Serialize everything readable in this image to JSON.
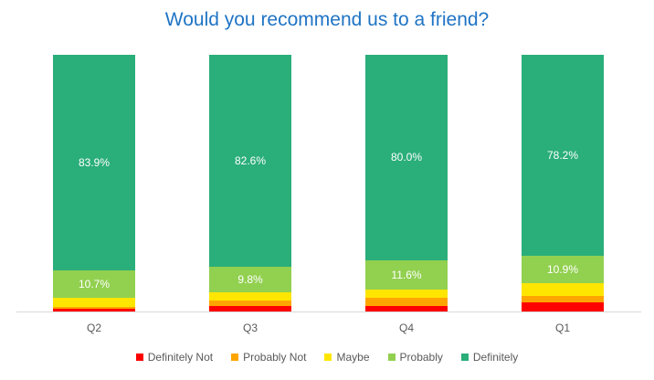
{
  "chart_data": {
    "type": "bar",
    "stacked": true,
    "percent_stacked": true,
    "title": "Would you recommend us to a friend?",
    "xlabel": "",
    "ylabel": "",
    "ylim": [
      0,
      100
    ],
    "grid": false,
    "legend_position": "bottom",
    "categories": [
      "Q2",
      "Q3",
      "Q4",
      "Q1"
    ],
    "series": [
      {
        "name": "Definitely Not",
        "color": "#ff0000",
        "values": [
          1.1,
          2.2,
          2.0,
          3.6
        ],
        "labeled": false
      },
      {
        "name": "Probably Not",
        "color": "#ffa500",
        "values": [
          0.7,
          2.2,
          3.2,
          2.6
        ],
        "labeled": false
      },
      {
        "name": "Maybe",
        "color": "#ffe600",
        "values": [
          3.6,
          3.2,
          3.2,
          4.7
        ],
        "labeled": false
      },
      {
        "name": "Probably",
        "color": "#92d050",
        "values": [
          10.7,
          9.8,
          11.6,
          10.9
        ],
        "labeled": true
      },
      {
        "name": "Definitely",
        "color": "#2aae7a",
        "values": [
          83.9,
          82.6,
          80.0,
          78.2
        ],
        "labeled": true
      }
    ],
    "data_labels": {
      "Probably": [
        "10.7%",
        "9.8%",
        "11.6%",
        "10.9%"
      ],
      "Definitely": [
        "83.9%",
        "82.6%",
        "80.0%",
        "78.2%"
      ]
    }
  },
  "title": "Would you recommend us to a friend?",
  "legend": [
    "Definitely Not",
    "Probably Not",
    "Maybe",
    "Probably",
    "Definitely"
  ]
}
